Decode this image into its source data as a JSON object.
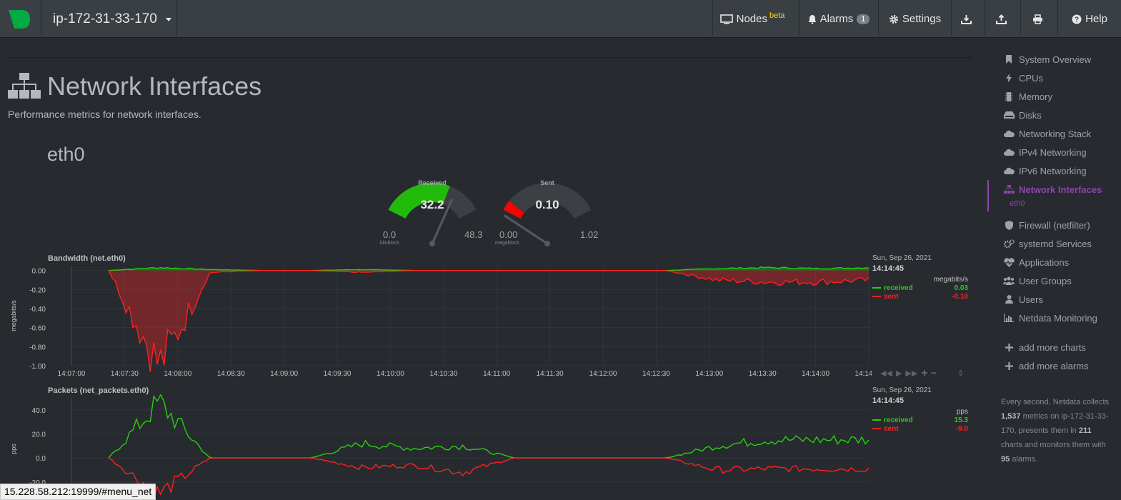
{
  "navbar": {
    "hostname": "ip-172-31-33-170",
    "nodes_label": "Nodes",
    "nodes_badge": "beta",
    "alarms_label": "Alarms",
    "alarms_count": "1",
    "settings_label": "Settings",
    "help_label": "Help"
  },
  "section": {
    "title": "Network Interfaces",
    "description": "Performance metrics for network interfaces.",
    "interface": "eth0"
  },
  "gauges": {
    "received": {
      "title": "Received",
      "value": "32.2",
      "min": "0.0",
      "max": "48.3",
      "unit": "kilobits/s",
      "fill_fraction": 0.667,
      "color": "#22bb0c"
    },
    "sent": {
      "title": "Sent",
      "value": "0.10",
      "min": "0.00",
      "max": "1.02",
      "unit": "megabits/s",
      "fill_fraction": 0.098,
      "color": "#ff0000"
    }
  },
  "charts": {
    "bandwidth": {
      "title": "Bandwidth (net.eth0)",
      "ylabel": "megabits/s",
      "yticks": [
        "0.00",
        "-0.20",
        "-0.40",
        "-0.60",
        "-0.80",
        "-1.00"
      ],
      "xticks": [
        "14:07:00",
        "14:07:30",
        "14:08:00",
        "14:08:30",
        "14:09:00",
        "14:09:30",
        "14:10:00",
        "14:10:30",
        "14:11:00",
        "14:11:30",
        "14:12:00",
        "14:12:30",
        "14:13:00",
        "14:13:30",
        "14:14:00",
        "14:14:30"
      ],
      "legend": {
        "date": "Sun, Sep 26, 2021",
        "time": "14:14:45",
        "units": "megabits/s",
        "received_label": "received",
        "received_value": "0.03",
        "sent_label": "sent",
        "sent_value": "-0.10"
      }
    },
    "packets": {
      "title": "Packets (net_packets.eth0)",
      "ylabel": "pps",
      "yticks": [
        "40.0",
        "20.0",
        "0.0",
        "-20.0"
      ],
      "legend": {
        "date": "Sun, Sep 26, 2021",
        "time": "14:14:45",
        "units": "pps",
        "received_label": "received",
        "received_value": "15.3",
        "sent_label": "sent",
        "sent_value": "-9.0"
      }
    }
  },
  "chart_data": [
    {
      "type": "area",
      "title": "Bandwidth (net.eth0)",
      "ylabel": "megabits/s",
      "ylim": [
        -1.0,
        0.05
      ],
      "x": [
        "14:07:00",
        "14:07:30",
        "14:08:00",
        "14:08:30",
        "14:09:00",
        "14:09:30",
        "14:10:00",
        "14:10:30",
        "14:11:00",
        "14:11:30",
        "14:12:00",
        "14:12:30",
        "14:13:00",
        "14:13:30",
        "14:14:00",
        "14:14:30"
      ],
      "series": [
        {
          "name": "received",
          "color": "#27d10c",
          "values": [
            0,
            0.03,
            0.01,
            0,
            0,
            0.01,
            0,
            0,
            0,
            0,
            0,
            0,
            0.02,
            0.03,
            0.02,
            0.03
          ]
        },
        {
          "name": "sent",
          "color": "#ff2020",
          "values": [
            0,
            -1.0,
            -0.02,
            0,
            0,
            -0.02,
            0,
            0,
            0,
            0,
            0,
            0,
            -0.1,
            -0.12,
            -0.12,
            -0.1
          ]
        }
      ]
    },
    {
      "type": "line",
      "title": "Packets (net_packets.eth0)",
      "ylabel": "pps",
      "ylim": [
        -35,
        50
      ],
      "x": [
        "14:07:00",
        "14:07:30",
        "14:08:00",
        "14:08:30",
        "14:09:00",
        "14:09:30",
        "14:10:00",
        "14:10:30",
        "14:11:00",
        "14:11:30",
        "14:12:00",
        "14:12:30",
        "14:13:00",
        "14:13:30",
        "14:14:00",
        "14:14:30"
      ],
      "series": [
        {
          "name": "received",
          "color": "#27d10c",
          "values": [
            0,
            46,
            0,
            0,
            0,
            12,
            8,
            10,
            0,
            0,
            0,
            0,
            10,
            15,
            15,
            15.3
          ]
        },
        {
          "name": "sent",
          "color": "#ff2020",
          "values": [
            0,
            -30,
            0,
            0,
            0,
            -8,
            -6,
            -12,
            0,
            0,
            0,
            0,
            -10,
            -9,
            -9,
            -9.0
          ]
        }
      ]
    }
  ],
  "sidebar": {
    "items": [
      {
        "label": "System Overview",
        "icon": "bookmark-icon"
      },
      {
        "label": "CPUs",
        "icon": "bolt-icon"
      },
      {
        "label": "Memory",
        "icon": "microchip-icon"
      },
      {
        "label": "Disks",
        "icon": "hdd-icon"
      },
      {
        "label": "Networking Stack",
        "icon": "cloud-icon"
      },
      {
        "label": "IPv4 Networking",
        "icon": "cloud-icon"
      },
      {
        "label": "IPv6 Networking",
        "icon": "cloud-icon"
      },
      {
        "label": "Network Interfaces",
        "icon": "sitemap-icon"
      },
      {
        "label": "Firewall (netfilter)",
        "icon": "shield-icon"
      },
      {
        "label": "systemd Services",
        "icon": "cogs-icon"
      },
      {
        "label": "Applications",
        "icon": "heartbeat-icon"
      },
      {
        "label": "User Groups",
        "icon": "users-icon"
      },
      {
        "label": "Users",
        "icon": "user-icon"
      },
      {
        "label": "Netdata Monitoring",
        "icon": "bar-chart-icon"
      }
    ],
    "subitem": "eth0",
    "add_charts": "add more charts",
    "add_alarms": "add more alarms",
    "footer": {
      "pre": "Every second, Netdata collects ",
      "metrics": "1,537",
      "mid1": " metrics on ip-172-31-33-170, presents them in ",
      "charts": "211",
      "mid2": " charts and monitors them with ",
      "alarms": "95",
      "post": " alarms."
    }
  },
  "status_url": "15.228.58.212:19999/#menu_net"
}
